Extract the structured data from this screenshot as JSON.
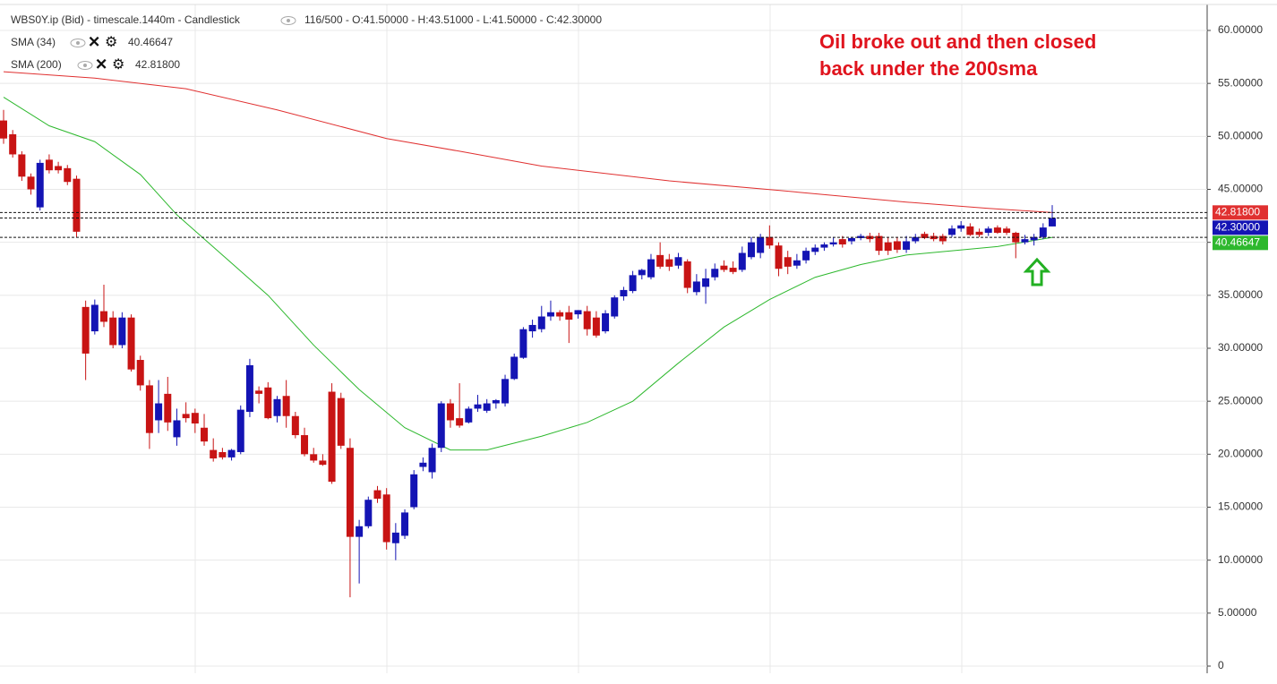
{
  "chart_data": {
    "type": "candlestick",
    "header": "WBS0Y.ip (Bid) - timescale.1440m - Candlestick",
    "header_stats": "116/500 - O:41.50000 - H:43.51000 - L:41.50000 - C:42.30000",
    "annotation": [
      "Oil broke out and then closed",
      "back under the 200sma"
    ],
    "up_color": "#1414b4",
    "down_color": "#c81414",
    "ylim": [
      0,
      60
    ],
    "yticks": [
      0,
      {
        "value": 5,
        "label": "5.00000"
      },
      {
        "value": 10,
        "label": "10.00000"
      },
      {
        "value": 15,
        "label": "15.00000"
      },
      {
        "value": 20,
        "label": "20.00000"
      },
      {
        "value": 25,
        "label": "25.00000"
      },
      {
        "value": 30,
        "label": "30.00000"
      },
      {
        "value": 35,
        "label": "35.00000"
      },
      {
        "value": 40,
        "label": "40.00000"
      },
      {
        "value": 45,
        "label": "45.00000"
      },
      {
        "value": 50,
        "label": "50.00000"
      },
      {
        "value": 55,
        "label": "55.00000"
      },
      {
        "value": 60,
        "label": "60.00000"
      }
    ],
    "grid": true,
    "ohlc": [
      [
        51.5,
        52.5,
        49.3,
        49.8
      ],
      [
        50.2,
        50.6,
        48.0,
        48.3
      ],
      [
        48.3,
        48.6,
        45.8,
        46.2
      ],
      [
        46.2,
        46.5,
        44.5,
        45.0
      ],
      [
        43.3,
        47.8,
        43.0,
        47.5
      ],
      [
        47.8,
        48.3,
        46.5,
        46.8
      ],
      [
        47.2,
        47.6,
        46.5,
        46.8
      ],
      [
        47.0,
        47.3,
        45.4,
        45.7
      ],
      [
        46.0,
        46.3,
        40.5,
        41.0
      ],
      [
        33.9,
        34.5,
        27.0,
        29.5
      ],
      [
        31.6,
        34.6,
        31.3,
        34.1
      ],
      [
        33.5,
        36.0,
        32.0,
        32.5
      ],
      [
        32.9,
        33.5,
        30.0,
        30.3
      ],
      [
        30.3,
        33.4,
        30.0,
        32.9
      ],
      [
        32.9,
        33.2,
        27.8,
        28.0
      ],
      [
        28.9,
        29.3,
        26.0,
        26.5
      ],
      [
        26.5,
        27.0,
        20.5,
        22.0
      ],
      [
        23.2,
        27.0,
        22.0,
        24.8
      ],
      [
        25.7,
        27.3,
        22.2,
        23.0
      ],
      [
        21.6,
        24.3,
        20.8,
        23.2
      ],
      [
        23.8,
        24.9,
        23.0,
        23.4
      ],
      [
        23.9,
        24.3,
        22.0,
        22.9
      ],
      [
        22.5,
        23.8,
        20.8,
        21.2
      ],
      [
        20.4,
        21.5,
        19.3,
        19.6
      ],
      [
        20.2,
        20.6,
        19.5,
        19.7
      ],
      [
        19.7,
        20.5,
        19.4,
        20.4
      ],
      [
        20.2,
        24.6,
        20.0,
        24.2
      ],
      [
        24.0,
        29.0,
        23.5,
        28.4
      ],
      [
        26.0,
        26.4,
        24.8,
        25.7
      ],
      [
        26.3,
        26.8,
        23.3,
        23.4
      ],
      [
        23.6,
        25.5,
        23.0,
        25.2
      ],
      [
        25.5,
        27.0,
        22.5,
        23.6
      ],
      [
        23.6,
        24.0,
        21.5,
        21.8
      ],
      [
        21.8,
        22.5,
        19.8,
        20.0
      ],
      [
        20.0,
        20.6,
        19.2,
        19.4
      ],
      [
        19.4,
        20.0,
        18.9,
        19.0
      ],
      [
        25.9,
        26.7,
        17.2,
        17.4
      ],
      [
        25.3,
        25.8,
        20.5,
        20.8
      ],
      [
        20.6,
        21.5,
        6.5,
        12.2
      ],
      [
        12.2,
        13.8,
        7.8,
        13.2
      ],
      [
        13.2,
        16.0,
        13.0,
        15.7
      ],
      [
        16.6,
        17.0,
        15.4,
        15.8
      ],
      [
        16.2,
        16.8,
        11.0,
        11.7
      ],
      [
        11.6,
        13.5,
        10.0,
        12.6
      ],
      [
        12.3,
        14.8,
        12.0,
        14.5
      ],
      [
        15.0,
        18.5,
        14.8,
        18.1
      ],
      [
        18.8,
        19.7,
        18.4,
        19.2
      ],
      [
        18.3,
        21.0,
        17.7,
        20.6
      ],
      [
        20.6,
        25.0,
        20.2,
        24.8
      ],
      [
        24.8,
        25.2,
        22.5,
        23.2
      ],
      [
        23.4,
        26.7,
        22.5,
        22.7
      ],
      [
        23.0,
        24.5,
        22.9,
        24.3
      ],
      [
        24.3,
        25.6,
        24.0,
        24.7
      ],
      [
        24.1,
        25.2,
        23.9,
        24.8
      ],
      [
        24.8,
        25.2,
        24.3,
        25.1
      ],
      [
        24.8,
        27.5,
        24.5,
        27.1
      ],
      [
        27.1,
        29.5,
        27.0,
        29.2
      ],
      [
        29.1,
        32.0,
        29.0,
        31.8
      ],
      [
        31.6,
        32.7,
        31.0,
        32.2
      ],
      [
        31.8,
        34.0,
        31.5,
        33.0
      ],
      [
        33.0,
        34.5,
        32.6,
        33.4
      ],
      [
        33.4,
        33.6,
        32.6,
        33.0
      ],
      [
        33.4,
        34.0,
        30.5,
        32.7
      ],
      [
        33.2,
        33.6,
        32.8,
        33.6
      ],
      [
        33.5,
        34.0,
        31.2,
        31.8
      ],
      [
        32.9,
        33.5,
        31.0,
        31.2
      ],
      [
        31.6,
        33.6,
        31.4,
        33.3
      ],
      [
        33.0,
        35.0,
        32.8,
        34.8
      ],
      [
        34.9,
        35.8,
        34.5,
        35.5
      ],
      [
        35.4,
        37.3,
        35.2,
        36.9
      ],
      [
        36.9,
        37.5,
        36.5,
        37.4
      ],
      [
        36.7,
        38.9,
        36.5,
        38.4
      ],
      [
        38.8,
        40.0,
        37.5,
        37.7
      ],
      [
        38.4,
        38.9,
        37.3,
        37.7
      ],
      [
        37.8,
        39.0,
        37.5,
        38.6
      ],
      [
        38.2,
        38.4,
        35.2,
        35.7
      ],
      [
        35.3,
        37.0,
        35.0,
        36.3
      ],
      [
        35.8,
        37.5,
        34.2,
        36.6
      ],
      [
        36.7,
        38.0,
        36.4,
        37.5
      ],
      [
        37.8,
        38.3,
        37.2,
        37.4
      ],
      [
        37.6,
        38.2,
        37.0,
        37.2
      ],
      [
        37.4,
        39.6,
        37.2,
        39.0
      ],
      [
        38.6,
        40.5,
        38.4,
        40.0
      ],
      [
        39.0,
        40.8,
        38.5,
        40.5
      ],
      [
        40.5,
        41.6,
        39.4,
        39.7
      ],
      [
        39.7,
        40.0,
        36.8,
        37.5
      ],
      [
        38.6,
        39.2,
        37.0,
        37.7
      ],
      [
        37.8,
        38.9,
        37.5,
        38.3
      ],
      [
        38.3,
        39.5,
        38.0,
        39.2
      ],
      [
        39.1,
        39.8,
        38.8,
        39.5
      ],
      [
        39.5,
        40.0,
        39.2,
        39.8
      ],
      [
        39.8,
        40.5,
        39.6,
        40.0
      ],
      [
        40.3,
        40.6,
        39.5,
        39.8
      ],
      [
        40.1,
        40.5,
        39.8,
        40.4
      ],
      [
        40.4,
        40.8,
        40.2,
        40.6
      ],
      [
        40.6,
        40.9,
        40.0,
        40.3
      ],
      [
        40.6,
        40.9,
        38.8,
        39.2
      ],
      [
        40.0,
        40.5,
        38.8,
        39.2
      ],
      [
        40.1,
        40.5,
        39.0,
        39.3
      ],
      [
        39.3,
        40.6,
        39.0,
        40.1
      ],
      [
        40.1,
        40.8,
        39.9,
        40.5
      ],
      [
        40.8,
        41.0,
        40.3,
        40.4
      ],
      [
        40.6,
        40.9,
        40.1,
        40.3
      ],
      [
        40.6,
        40.8,
        39.8,
        40.1
      ],
      [
        40.7,
        41.6,
        40.5,
        41.3
      ],
      [
        41.3,
        42.0,
        41.0,
        41.6
      ],
      [
        41.5,
        41.8,
        40.6,
        40.7
      ],
      [
        41.0,
        41.3,
        40.5,
        40.7
      ],
      [
        40.9,
        41.5,
        40.6,
        41.3
      ],
      [
        41.4,
        41.6,
        40.8,
        40.9
      ],
      [
        41.3,
        41.5,
        40.7,
        40.9
      ],
      [
        40.9,
        41.0,
        38.5,
        40.0
      ],
      [
        40.0,
        40.7,
        39.8,
        40.3
      ],
      [
        40.2,
        40.8,
        39.7,
        40.5
      ],
      [
        40.5,
        41.8,
        40.3,
        41.4
      ],
      [
        41.5,
        43.51,
        41.5,
        42.3
      ]
    ],
    "series": [
      {
        "name": "SMA (34)",
        "color": "#2db82d",
        "last": 40.46647,
        "last_label": "40.46647",
        "x": [
          0,
          5,
          10,
          15,
          19,
          24,
          29,
          34,
          39,
          44,
          49,
          53,
          59,
          64,
          69,
          74,
          79,
          84,
          89,
          94,
          99,
          104,
          109,
          115
        ],
        "values": [
          53.7,
          51.0,
          49.5,
          46.4,
          42.6,
          38.8,
          35.0,
          30.3,
          26.1,
          22.5,
          20.4,
          20.4,
          21.7,
          23.0,
          25.0,
          28.6,
          32.0,
          34.6,
          36.7,
          37.9,
          38.8,
          39.2,
          39.6,
          40.46647
        ]
      },
      {
        "name": "SMA (200)",
        "color": "#e03030",
        "last": 42.818,
        "last_label": "42.81800",
        "x": [
          0,
          10,
          20,
          30,
          42,
          50,
          59,
          73,
          85,
          99,
          108,
          115
        ],
        "values": [
          56.1,
          55.5,
          54.5,
          52.5,
          49.8,
          48.6,
          47.2,
          45.8,
          44.9,
          43.8,
          43.2,
          42.818
        ]
      }
    ],
    "current": {
      "value": 42.3,
      "label": "42.30000",
      "color": "#1414b4"
    }
  }
}
